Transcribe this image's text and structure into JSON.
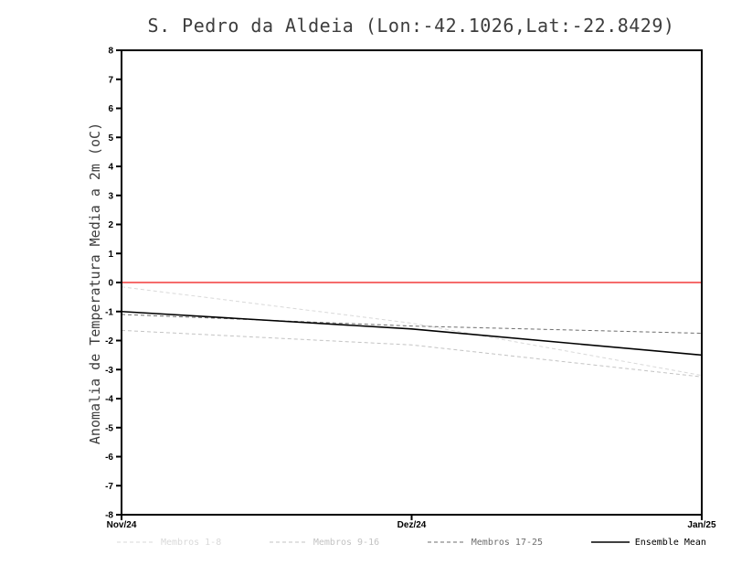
{
  "chart_data": {
    "type": "line",
    "title": "S. Pedro da Aldeia (Lon:-42.1026,Lat:-22.8429)",
    "ylabel": "Anomalia de Temperatura Media a 2m (oC)",
    "xlabel": "",
    "categories": [
      "Nov/24",
      "Dez/24",
      "Jan/25"
    ],
    "ylim": [
      -8,
      8
    ],
    "y_ticks": [
      -8,
      -7,
      -6,
      -5,
      -4,
      -3,
      -2,
      -1,
      0,
      1,
      2,
      3,
      4,
      5,
      6,
      7,
      8
    ],
    "grid": false,
    "legend_position": "bottom",
    "zero_line": {
      "value": 0,
      "color": "#f23b3b"
    },
    "series": [
      {
        "name": "Membros 1-8",
        "values": [
          -0.15,
          -1.4,
          -3.2
        ],
        "color": "#d9d9d9",
        "dash": "4 3",
        "width": 1
      },
      {
        "name": "Membros 9-16",
        "values": [
          -1.65,
          -2.15,
          -3.25
        ],
        "color": "#c3c3c3",
        "dash": "4 3",
        "width": 1
      },
      {
        "name": "Membros 17-25",
        "values": [
          -1.1,
          -1.5,
          -1.75
        ],
        "color": "#6e6e6e",
        "dash": "4 3",
        "width": 1
      },
      {
        "name": "Ensemble Mean",
        "values": [
          -1.0,
          -1.6,
          -2.5
        ],
        "color": "#000000",
        "dash": "",
        "width": 1.6
      }
    ]
  }
}
